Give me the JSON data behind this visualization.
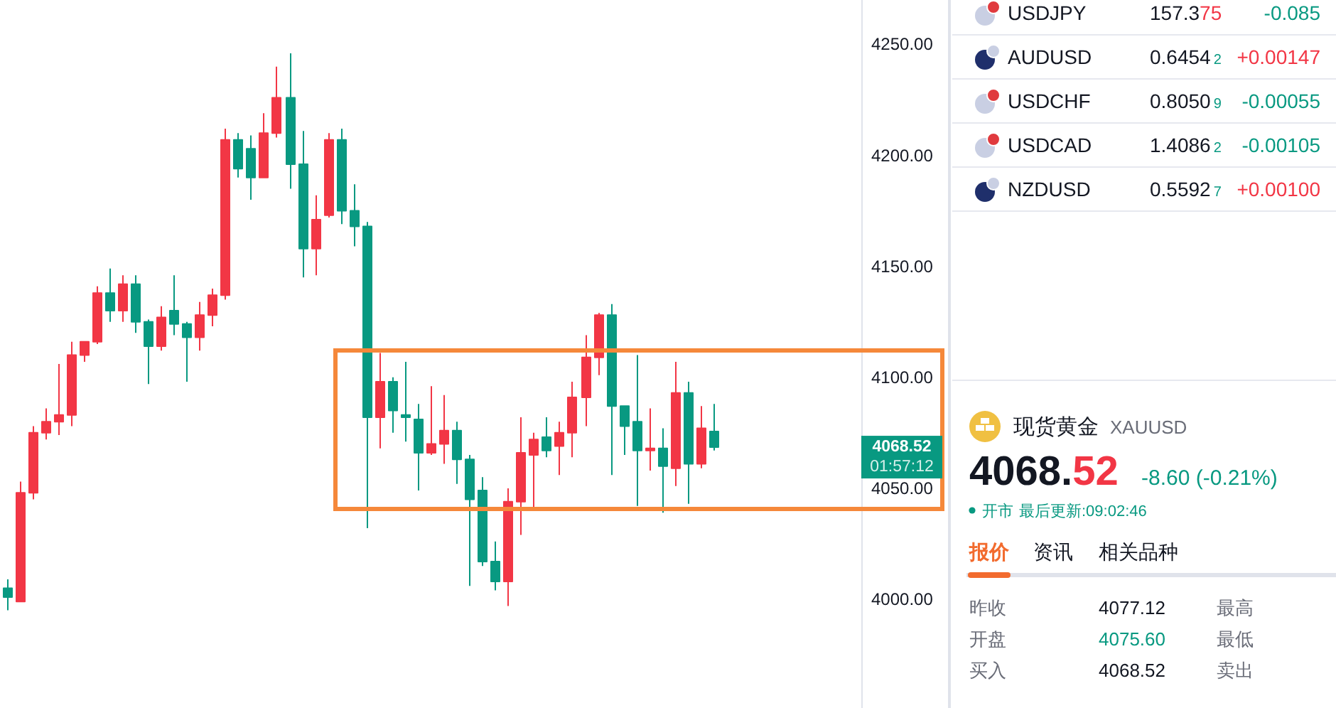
{
  "chart_data": [
    {
      "type": "candlestick",
      "categories": [
        null,
        null,
        null,
        null,
        null,
        null,
        null,
        null,
        null,
        null,
        null,
        null,
        null,
        null,
        null,
        null,
        null,
        null,
        null,
        null,
        null,
        null,
        null,
        null,
        null,
        null,
        null,
        null,
        null,
        null,
        null,
        null,
        null,
        null,
        null,
        null,
        null,
        null,
        null,
        null,
        null,
        null,
        null,
        null,
        null,
        null,
        null,
        null,
        null,
        null,
        null,
        null,
        null,
        null,
        null,
        null,
        null,
        null,
        null,
        null,
        null,
        null,
        null,
        null,
        null,
        null,
        null
      ],
      "ohlc": [
        [
          4005,
          4009,
          3995,
          4001
        ],
        [
          3999,
          4053,
          3999,
          4048
        ],
        [
          4048,
          4078,
          4045,
          4075
        ],
        [
          4075,
          4086,
          4072,
          4080
        ],
        [
          4080,
          4106,
          4074,
          4083
        ],
        [
          4083,
          4116,
          4078,
          4110
        ],
        [
          4110,
          4116,
          4107,
          4116
        ],
        [
          4116,
          4141,
          4115,
          4138
        ],
        [
          4138,
          4149,
          4125,
          4130
        ],
        [
          4130,
          4146,
          4125,
          4142
        ],
        [
          4142,
          4146,
          4120,
          4125
        ],
        [
          4125,
          4126,
          4097,
          4114
        ],
        [
          4114,
          4132,
          4112,
          4127
        ],
        [
          4130,
          4146,
          4119,
          4124
        ],
        [
          4124,
          4125,
          4098,
          4118
        ],
        [
          4118,
          4134,
          4112,
          4128
        ],
        [
          4128,
          4140,
          4123,
          4137
        ],
        [
          4137,
          4212,
          4135,
          4207
        ],
        [
          4207,
          4210,
          4190,
          4194
        ],
        [
          4203,
          4209,
          4180,
          4190
        ],
        [
          4190,
          4219,
          4190,
          4210
        ],
        [
          4210,
          4240,
          4208,
          4226
        ],
        [
          4226,
          4246,
          4185,
          4196
        ],
        [
          4196,
          4211,
          4145,
          4158
        ],
        [
          4158,
          4182,
          4146,
          4171
        ],
        [
          4173,
          4210,
          4172,
          4207
        ],
        [
          4207,
          4212,
          4169,
          4175
        ],
        [
          4175,
          4187,
          4159,
          4168
        ],
        [
          4168,
          4170,
          4032,
          4082
        ],
        [
          4082,
          4111,
          4068,
          4098
        ],
        [
          4098,
          4100,
          4075,
          4085
        ],
        [
          4083,
          4107,
          4071,
          4082
        ],
        [
          4081,
          4088,
          4049,
          4066
        ],
        [
          4066,
          4096,
          4065,
          4070
        ],
        [
          4070,
          4092,
          4061,
          4076
        ],
        [
          4076,
          4080,
          4052,
          4063
        ],
        [
          4063,
          4065,
          4006,
          4045
        ],
        [
          4049,
          4055,
          4015,
          4017
        ],
        [
          4017,
          4026,
          4004,
          4008
        ],
        [
          4008,
          4050,
          3997,
          4044
        ],
        [
          4044,
          4082,
          4029,
          4066
        ],
        [
          4065,
          4075,
          4041,
          4072
        ],
        [
          4073,
          4082,
          4064,
          4067
        ],
        [
          4069,
          4080,
          4056,
          4075
        ],
        [
          4075,
          4098,
          4064,
          4091
        ],
        [
          4091,
          4119,
          4078,
          4109
        ],
        [
          4109,
          4129,
          4101,
          4128
        ],
        [
          4128,
          4133,
          4056,
          4087
        ],
        [
          4087,
          4087,
          4065,
          4078
        ],
        [
          4080,
          4110,
          4042,
          4067
        ],
        [
          4067,
          4086,
          4058,
          4068
        ],
        [
          4068,
          4077,
          4039,
          4060
        ],
        [
          4059,
          4107,
          4051,
          4093
        ],
        [
          4093,
          4098,
          4043,
          4061
        ],
        [
          4061,
          4087,
          4059,
          4077
        ],
        [
          4075.6,
          4088,
          4067,
          4068.52
        ],
        null,
        null,
        null,
        null,
        null,
        null,
        null,
        null,
        null,
        null,
        null
      ],
      "colors": [
        "#089981",
        "#f23645",
        "#f23645",
        "#f23645",
        "#f23645",
        "#f23645",
        "#f23645",
        "#f23645",
        "#089981",
        "#f23645",
        "#089981",
        "#089981",
        "#f23645",
        "#089981",
        "#089981",
        "#f23645",
        "#f23645",
        "#f23645",
        "#089981",
        "#089981",
        "#f23645",
        "#f23645",
        "#089981",
        "#089981",
        "#f23645",
        "#f23645",
        "#089981",
        "#089981",
        "#089981",
        "#f23645",
        "#089981",
        "#089981",
        "#089981",
        "#f23645",
        "#f23645",
        "#089981",
        "#089981",
        "#089981",
        "#089981",
        "#f23645",
        "#f23645",
        "#f23645",
        "#089981",
        "#f23645",
        "#f23645",
        "#f23645",
        "#f23645",
        "#089981",
        "#089981",
        "#089981",
        "#f23645",
        "#089981",
        "#f23645",
        "#089981",
        "#f23645",
        "#089981",
        null,
        null,
        null,
        null,
        null,
        null,
        null,
        null,
        null,
        null,
        null
      ],
      "ylim": [
        3951,
        4270
      ],
      "yticks": [
        {
          "value": 4000,
          "label": "4000.00"
        },
        {
          "value": 4050,
          "label": "4050.00"
        },
        {
          "value": 4100,
          "label": "4100.00"
        },
        {
          "value": 4150,
          "label": "4150.00"
        },
        {
          "value": 4200,
          "label": "4200.00"
        },
        {
          "value": 4250,
          "label": "4250.00"
        }
      ],
      "tick_labels": "y",
      "annotations": [
        "4068.52",
        "01:57:12"
      ]
    },
    {
      "type": "other",
      "annotations": [
        "USDJPY",
        "157.3",
        "75",
        "-0.085",
        "AUDUSD",
        "0.6454",
        "2",
        "+0.00147",
        "USDCHF",
        "0.8050",
        "9",
        "-0.00055",
        "USDCAD",
        "1.4086",
        "2",
        "-0.00105",
        "NZDUSD",
        "0.5592",
        "7",
        "+0.00100",
        "现货黄金",
        "XAUUSD",
        "4068.",
        "52",
        "-8.60 (-0.21%)",
        "开市",
        "最后更新:09:02:46",
        "报价",
        "资讯",
        "相关品种",
        "昨收",
        "4077.12",
        "最高",
        "开盘",
        "4075.60",
        "最低",
        "买入",
        "4068.52",
        "卖出"
      ],
      "colors": [
        "#131722",
        "#131722",
        "#f23645",
        "#089981",
        "#131722",
        "#131722",
        "#089981",
        "#f23645",
        "#131722",
        "#131722",
        "#089981",
        "#089981",
        "#131722",
        "#131722",
        "#089981",
        "#089981",
        "#131722",
        "#131722",
        "#089981",
        "#f23645",
        "#131722",
        "#6a6d78",
        "#131722",
        "#f23645",
        "#089981",
        "#089981",
        "#089981",
        "#f26b2e",
        "#131722",
        "#131722",
        "#6a6d78",
        "#131722",
        "#6a6d78",
        "#6a6d78",
        "#089981",
        "#6a6d78",
        "#6a6d78",
        "#131722",
        "#6a6d78"
      ]
    }
  ]
}
